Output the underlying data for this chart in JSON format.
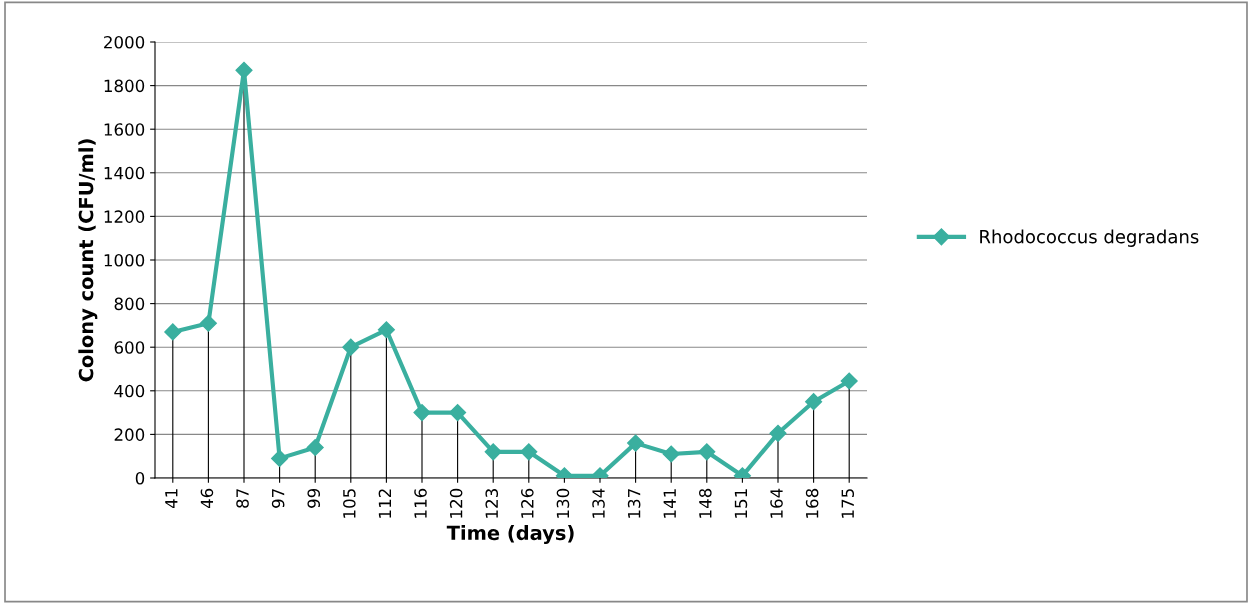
{
  "chart_data": {
    "type": "line",
    "xlabel": "Time (days)",
    "ylabel": "Colony count (CFU/ml)",
    "categories": [
      "41",
      "46",
      "87",
      "97",
      "99",
      "105",
      "112",
      "116",
      "120",
      "123",
      "126",
      "130",
      "134",
      "137",
      "141",
      "148",
      "151",
      "164",
      "168",
      "175"
    ],
    "series": [
      {
        "name": "Rhodococcus degradans",
        "color": "#3aaf9f",
        "values": [
          670,
          710,
          1870,
          90,
          140,
          600,
          680,
          300,
          300,
          120,
          120,
          10,
          10,
          160,
          110,
          120,
          10,
          205,
          350,
          445
        ],
        "errors": [
          [
            0,
            670
          ],
          [
            0,
            710
          ],
          [
            0,
            1870
          ],
          [
            0,
            90
          ],
          [
            0,
            140
          ],
          [
            0,
            600
          ],
          [
            0,
            680
          ],
          [
            0,
            300
          ],
          [
            0,
            300
          ],
          [
            0,
            120
          ],
          [
            0,
            120
          ],
          [
            0,
            10
          ],
          [
            0,
            10
          ],
          [
            0,
            160
          ],
          [
            0,
            110
          ],
          [
            0,
            120
          ],
          [
            0,
            10
          ],
          [
            0,
            205
          ],
          [
            0,
            350
          ],
          [
            0,
            445
          ]
        ]
      }
    ],
    "ylim": [
      0,
      2000
    ],
    "yticks": [
      0,
      200,
      400,
      600,
      800,
      1000,
      1200,
      1400,
      1600,
      1800,
      2000
    ],
    "grid": "y",
    "legend": "right",
    "marker": "diamond",
    "line_style": "solid"
  }
}
